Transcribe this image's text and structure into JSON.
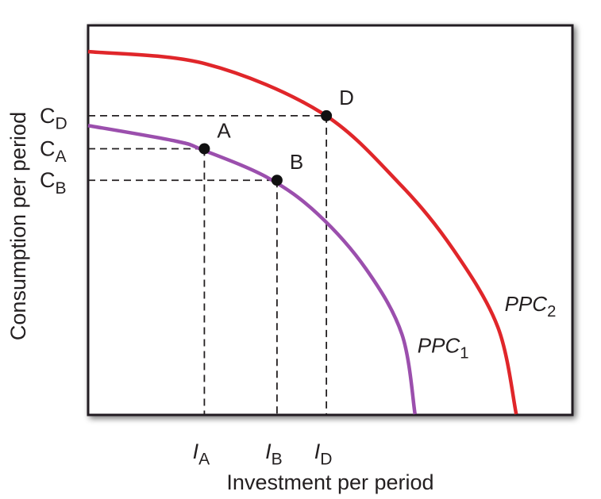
{
  "chart_data": {
    "type": "line",
    "title": "",
    "xlabel": "Investment per period",
    "ylabel": "Consumption per period",
    "xlim": [
      0,
      1
    ],
    "ylim": [
      0,
      1
    ],
    "grid": false,
    "colors": {
      "axis": "#231f20",
      "ppc1": "#9b4fad",
      "ppc2": "#e0262a",
      "point": "#111111"
    },
    "series": [
      {
        "name": "PPC1",
        "name_main": "PPC",
        "name_sub": "1",
        "color": "#9b4fad",
        "points": [
          [
            0,
            0.796
          ],
          [
            0.181,
            0.753
          ],
          [
            0.238,
            0.728
          ],
          [
            0.371,
            0.652
          ],
          [
            0.474,
            0.552
          ],
          [
            0.574,
            0.4
          ],
          [
            0.648,
            0.22
          ],
          [
            0.675,
            0.0
          ]
        ],
        "label_at": [
          0.68,
          0.17
        ]
      },
      {
        "name": "PPC2",
        "name_main": "PPC",
        "name_sub": "2",
        "color": "#e0262a",
        "points": [
          [
            0,
            1.0
          ],
          [
            0.243,
            0.966
          ],
          [
            0.481,
            0.832
          ],
          [
            0.642,
            0.637
          ],
          [
            0.754,
            0.454
          ],
          [
            0.846,
            0.24
          ],
          [
            0.884,
            0.0
          ]
        ],
        "label_at": [
          0.86,
          0.285
        ]
      }
    ],
    "points": [
      {
        "name": "A",
        "x": 0.24,
        "y": 0.732,
        "xtick_main": "I",
        "xtick_sub": "A",
        "ytick_main": "C",
        "ytick_sub": "A"
      },
      {
        "name": "B",
        "x": 0.39,
        "y": 0.645,
        "xtick_main": "I",
        "xtick_sub": "B",
        "ytick_main": "C",
        "ytick_sub": "B"
      },
      {
        "name": "D",
        "x": 0.492,
        "y": 0.823,
        "xtick_main": "I",
        "xtick_sub": "D",
        "ytick_main": "C",
        "ytick_sub": "D"
      }
    ]
  }
}
